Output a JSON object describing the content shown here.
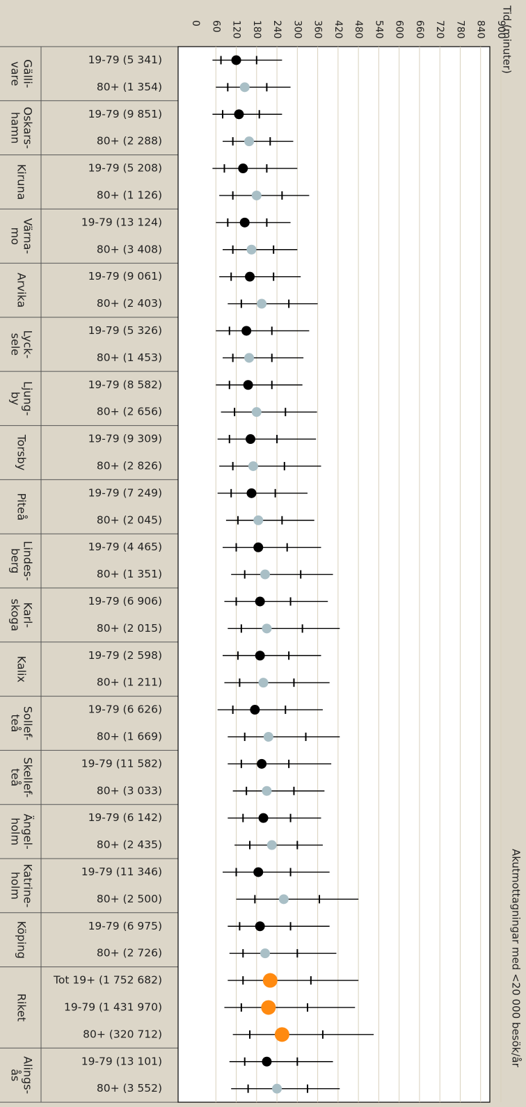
{
  "chart_data": {
    "type": "scatter",
    "title": "Akutmottagningar med <20 000 besök/år",
    "axis_title": "Tid (minuter)",
    "ticks": [
      0,
      60,
      120,
      180,
      240,
      300,
      360,
      420,
      480,
      540,
      600,
      660,
      720,
      780,
      840,
      900
    ],
    "xlim": [
      0,
      900
    ],
    "grid": true,
    "groups": [
      {
        "name": "Gälli- vare",
        "lines": [
          "Gälli-",
          "vare"
        ],
        "rows": [
          {
            "label": "19-79 (5 341)",
            "kind": "19-79",
            "lo": 50,
            "q1": 75,
            "median": 120,
            "q3": 180,
            "hi": 255
          },
          {
            "label": "80+ (1 354)",
            "kind": "80+",
            "lo": 60,
            "q1": 95,
            "median": 145,
            "q3": 210,
            "hi": 280
          }
        ]
      },
      {
        "name": "Oskars- hamn",
        "lines": [
          "Oskars-",
          "hamn"
        ],
        "rows": [
          {
            "label": "19-79 (9 851)",
            "kind": "19-79",
            "lo": 50,
            "q1": 80,
            "median": 128,
            "q3": 188,
            "hi": 255
          },
          {
            "label": "80+ (2 288)",
            "kind": "80+",
            "lo": 80,
            "q1": 110,
            "median": 158,
            "q3": 220,
            "hi": 288
          }
        ]
      },
      {
        "name": "Kiruna",
        "lines": [
          "Kiruna"
        ],
        "rows": [
          {
            "label": "19-79 (5 208)",
            "kind": "19-79",
            "lo": 50,
            "q1": 85,
            "median": 140,
            "q3": 210,
            "hi": 300
          },
          {
            "label": "80+ (1 126)",
            "kind": "80+",
            "lo": 70,
            "q1": 110,
            "median": 180,
            "q3": 255,
            "hi": 335
          }
        ]
      },
      {
        "name": "Värna- mo",
        "lines": [
          "Värna-",
          "mo"
        ],
        "rows": [
          {
            "label": "19-79 (13 124)",
            "kind": "19-79",
            "lo": 60,
            "q1": 95,
            "median": 145,
            "q3": 210,
            "hi": 280
          },
          {
            "label": "80+ (3 408)",
            "kind": "80+",
            "lo": 80,
            "q1": 110,
            "median": 165,
            "q3": 230,
            "hi": 300
          }
        ]
      },
      {
        "name": "Arvika",
        "lines": [
          "Arvika"
        ],
        "rows": [
          {
            "label": "19-79 (9 061)",
            "kind": "19-79",
            "lo": 70,
            "q1": 105,
            "median": 160,
            "q3": 230,
            "hi": 310
          },
          {
            "label": "80+ (2 403)",
            "kind": "80+",
            "lo": 95,
            "q1": 135,
            "median": 195,
            "q3": 275,
            "hi": 360
          }
        ]
      },
      {
        "name": "Lyck- sele",
        "lines": [
          "Lyck-",
          "sele"
        ],
        "rows": [
          {
            "label": "19-79 (5 326)",
            "kind": "19-79",
            "lo": 60,
            "q1": 100,
            "median": 150,
            "q3": 225,
            "hi": 335
          },
          {
            "label": "80+ (1 453)",
            "kind": "80+",
            "lo": 80,
            "q1": 110,
            "median": 158,
            "q3": 225,
            "hi": 318
          }
        ]
      },
      {
        "name": "Ljung- by",
        "lines": [
          "Ljung-",
          "by"
        ],
        "rows": [
          {
            "label": "19-79 (8 582)",
            "kind": "19-79",
            "lo": 60,
            "q1": 100,
            "median": 155,
            "q3": 225,
            "hi": 315
          },
          {
            "label": "80+ (2 656)",
            "kind": "80+",
            "lo": 75,
            "q1": 115,
            "median": 180,
            "q3": 265,
            "hi": 358
          }
        ]
      },
      {
        "name": "Torsby",
        "lines": [
          "Torsby"
        ],
        "rows": [
          {
            "label": "19-79 (9 309)",
            "kind": "19-79",
            "lo": 65,
            "q1": 100,
            "median": 162,
            "q3": 240,
            "hi": 355
          },
          {
            "label": "80+ (2 826)",
            "kind": "80+",
            "lo": 70,
            "q1": 110,
            "median": 170,
            "q3": 262,
            "hi": 370
          }
        ]
      },
      {
        "name": "Piteå",
        "lines": [
          "Piteå"
        ],
        "rows": [
          {
            "label": "19-79 (7 249)",
            "kind": "19-79",
            "lo": 65,
            "q1": 105,
            "median": 165,
            "q3": 235,
            "hi": 330
          },
          {
            "label": "80+ (2 045)",
            "kind": "80+",
            "lo": 90,
            "q1": 125,
            "median": 185,
            "q3": 255,
            "hi": 350
          }
        ]
      },
      {
        "name": "Lindes- berg",
        "lines": [
          "Lindes-",
          "berg"
        ],
        "rows": [
          {
            "label": "19-79 (4 465)",
            "kind": "19-79",
            "lo": 80,
            "q1": 120,
            "median": 185,
            "q3": 270,
            "hi": 370
          },
          {
            "label": "80+ (1 351)",
            "kind": "80+",
            "lo": 105,
            "q1": 145,
            "median": 205,
            "q3": 310,
            "hi": 405
          }
        ]
      },
      {
        "name": "Karl- skoga",
        "lines": [
          "Karl-",
          "skoga"
        ],
        "rows": [
          {
            "label": "19-79 (6 906)",
            "kind": "19-79",
            "lo": 85,
            "q1": 120,
            "median": 190,
            "q3": 280,
            "hi": 390
          },
          {
            "label": "80+ (2 015)",
            "kind": "80+",
            "lo": 95,
            "q1": 135,
            "median": 210,
            "q3": 315,
            "hi": 425
          }
        ]
      },
      {
        "name": "Kalix",
        "lines": [
          "Kalix"
        ],
        "rows": [
          {
            "label": "19-79 (2 598)",
            "kind": "19-79",
            "lo": 80,
            "q1": 125,
            "median": 190,
            "q3": 275,
            "hi": 370
          },
          {
            "label": "80+ (1 211)",
            "kind": "80+",
            "lo": 85,
            "q1": 130,
            "median": 200,
            "q3": 290,
            "hi": 395
          }
        ]
      },
      {
        "name": "Sollef- teå",
        "lines": [
          "Sollef-",
          "teå"
        ],
        "rows": [
          {
            "label": "19-79 (6 626)",
            "kind": "19-79",
            "lo": 65,
            "q1": 110,
            "median": 175,
            "q3": 265,
            "hi": 375
          },
          {
            "label": "80+ (1 669)",
            "kind": "80+",
            "lo": 95,
            "q1": 145,
            "median": 215,
            "q3": 325,
            "hi": 425
          }
        ]
      },
      {
        "name": "Skellef- teå",
        "lines": [
          "Skellef-",
          "teå"
        ],
        "rows": [
          {
            "label": "19-79 (11 582)",
            "kind": "19-79",
            "lo": 95,
            "q1": 135,
            "median": 195,
            "q3": 275,
            "hi": 400
          },
          {
            "label": "80+ (3 033)",
            "kind": "80+",
            "lo": 110,
            "q1": 150,
            "median": 210,
            "q3": 290,
            "hi": 380
          }
        ]
      },
      {
        "name": "Ängel- holm",
        "lines": [
          "Ängel-",
          "holm"
        ],
        "rows": [
          {
            "label": "19-79 (6 142)",
            "kind": "19-79",
            "lo": 95,
            "q1": 140,
            "median": 200,
            "q3": 280,
            "hi": 370
          },
          {
            "label": "80+ (2 435)",
            "kind": "80+",
            "lo": 115,
            "q1": 160,
            "median": 225,
            "q3": 300,
            "hi": 375
          }
        ]
      },
      {
        "name": "Katrine- holm",
        "lines": [
          "Katrine-",
          "holm"
        ],
        "rows": [
          {
            "label": "19-79 (11 346)",
            "kind": "19-79",
            "lo": 80,
            "q1": 120,
            "median": 185,
            "q3": 280,
            "hi": 395
          },
          {
            "label": "80+ (2 500)",
            "kind": "80+",
            "lo": 120,
            "q1": 175,
            "median": 260,
            "q3": 365,
            "hi": 480
          }
        ]
      },
      {
        "name": "Köping",
        "lines": [
          "Köping"
        ],
        "rows": [
          {
            "label": "19-79 (6 975)",
            "kind": "19-79",
            "lo": 95,
            "q1": 130,
            "median": 190,
            "q3": 280,
            "hi": 395
          },
          {
            "label": "80+ (2 726)",
            "kind": "80+",
            "lo": 100,
            "q1": 140,
            "median": 205,
            "q3": 300,
            "hi": 415
          }
        ]
      },
      {
        "name": "Riket",
        "lines": [
          "Riket"
        ],
        "rows": [
          {
            "label": "Tot 19+ (1 752 682)",
            "kind": "total",
            "lo": 95,
            "q1": 140,
            "median": 220,
            "q3": 340,
            "hi": 480
          },
          {
            "label": "19-79 (1 431 970)",
            "kind": "total",
            "lo": 85,
            "q1": 135,
            "median": 215,
            "q3": 330,
            "hi": 470
          },
          {
            "label": "80+ (320 712)",
            "kind": "total",
            "lo": 110,
            "q1": 160,
            "median": 255,
            "q3": 375,
            "hi": 525
          }
        ]
      },
      {
        "name": "Alings- ås",
        "lines": [
          "Alings-",
          "ås"
        ],
        "rows": [
          {
            "label": "19-79 (13 101)",
            "kind": "19-79",
            "lo": 100,
            "q1": 145,
            "median": 210,
            "q3": 300,
            "hi": 405
          },
          {
            "label": "80+ (3 552)",
            "kind": "80+",
            "lo": 105,
            "q1": 155,
            "median": 240,
            "q3": 330,
            "hi": 425
          }
        ]
      }
    ]
  },
  "colors": {
    "19-79": "#000000",
    "80+": "#a9bfc6",
    "total": "#ff8a10",
    "background": "#dcd6c8",
    "plot_bg": "#ffffff",
    "grid": "#d8d0bc"
  }
}
